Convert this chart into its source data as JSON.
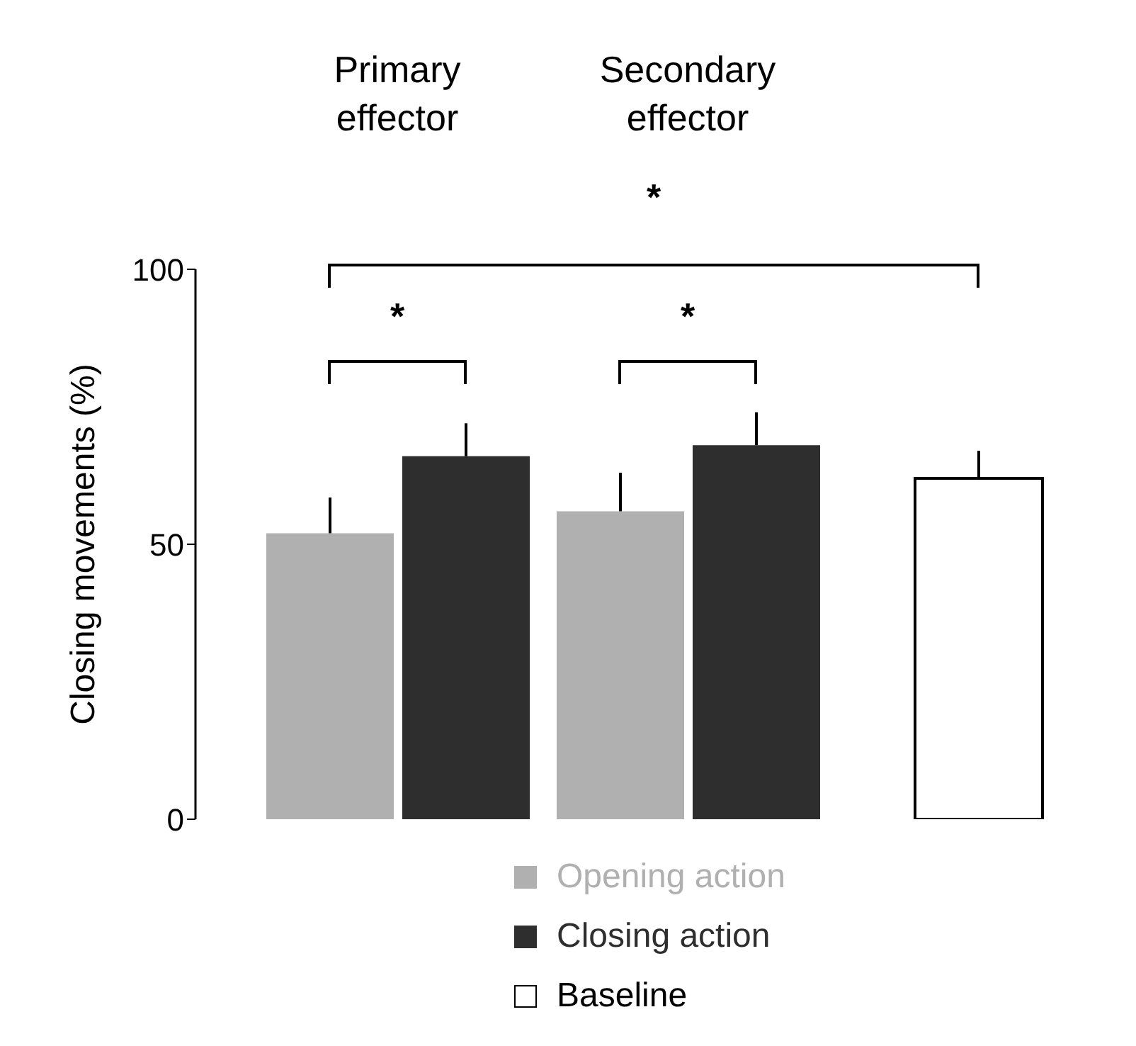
{
  "chart_data": {
    "type": "bar",
    "categories": [
      "Primary effector",
      "Secondary effector",
      null
    ],
    "ylabel": "Closing movements (%)",
    "ylim": [
      0,
      100
    ],
    "yticks": [
      0,
      50,
      100
    ],
    "grid": false,
    "legend": "bottom",
    "annotations": [
      "*",
      "*",
      "*"
    ],
    "series": [
      {
        "name": "Opening action",
        "color": "#b0b0b0",
        "values": [
          52,
          56,
          null
        ],
        "errors": [
          [
            52,
            58.5
          ],
          [
            56,
            63
          ],
          null
        ]
      },
      {
        "name": "Closing action",
        "color": "#2e2e2e",
        "values": [
          66,
          68,
          null
        ],
        "errors": [
          [
            66,
            72
          ],
          [
            68,
            74
          ],
          null
        ]
      },
      {
        "name": "Baseline",
        "color": "#ffffff",
        "values": [
          null,
          null,
          62
        ],
        "errors": [
          null,
          null,
          [
            62,
            67
          ]
        ]
      }
    ]
  }
}
